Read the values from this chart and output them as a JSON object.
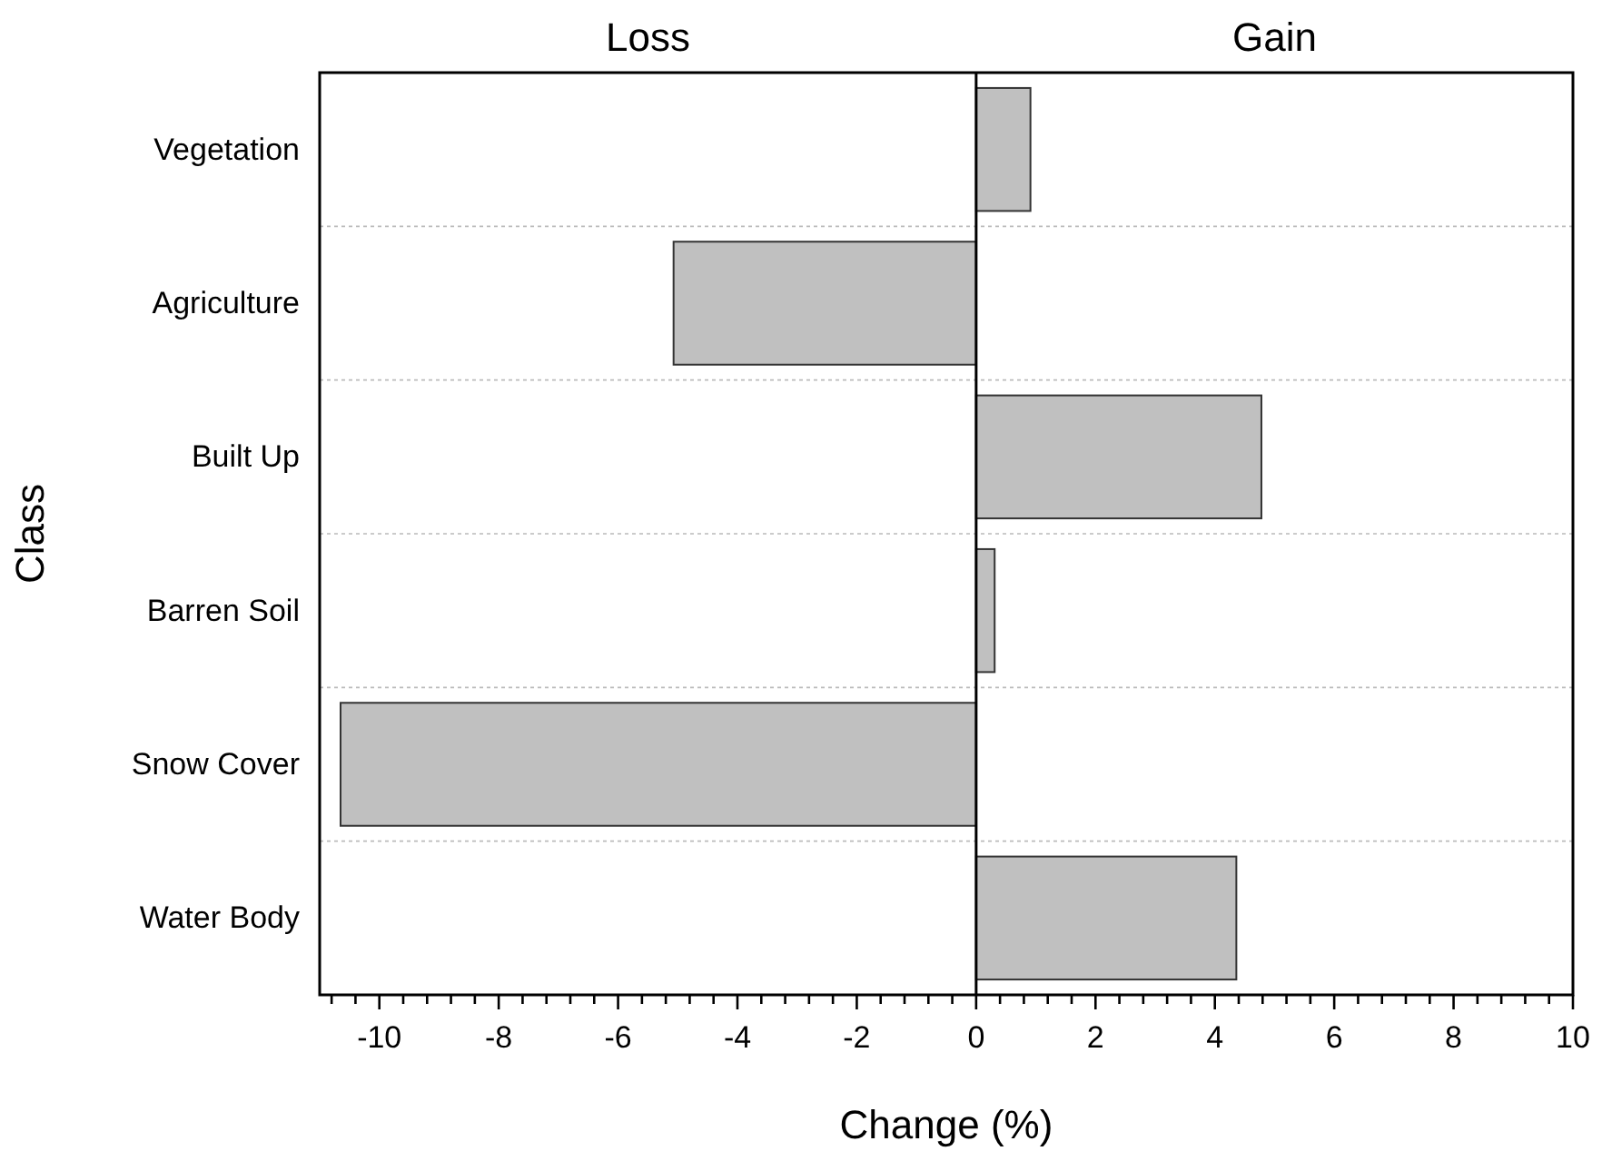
{
  "chart_data": {
    "type": "bar",
    "orientation": "horizontal",
    "xlabel": "Change (%)",
    "ylabel": "Class",
    "annotations": [
      "Loss",
      "Gain"
    ],
    "categories": [
      "Vegetation",
      "Agriculture",
      "Built Up",
      "Barren Soil",
      "Snow Cover",
      "Water Body"
    ],
    "values": [
      0.91,
      -5.07,
      4.78,
      0.31,
      -10.65,
      4.36
    ],
    "color": "#c0c0c0",
    "xlim": [
      -11,
      10
    ],
    "xticks": [
      {
        "value": -10.8,
        "label": null
      },
      {
        "value": -10.4,
        "label": null
      },
      -10,
      {
        "value": -9.6,
        "label": null
      },
      {
        "value": -9.2,
        "label": null
      },
      {
        "value": -8.8,
        "label": null
      },
      {
        "value": -8.4,
        "label": null
      },
      -8,
      {
        "value": -7.6,
        "label": null
      },
      {
        "value": -7.2,
        "label": null
      },
      {
        "value": -6.8,
        "label": null
      },
      {
        "value": -6.4,
        "label": null
      },
      -6,
      {
        "value": -5.6,
        "label": null
      },
      {
        "value": -5.2,
        "label": null
      },
      {
        "value": -4.8,
        "label": null
      },
      {
        "value": -4.4,
        "label": null
      },
      -4,
      {
        "value": -3.6,
        "label": null
      },
      {
        "value": -3.2,
        "label": null
      },
      {
        "value": -2.8,
        "label": null
      },
      {
        "value": -2.4,
        "label": null
      },
      -2,
      {
        "value": -1.6,
        "label": null
      },
      {
        "value": -1.2,
        "label": null
      },
      {
        "value": -0.8,
        "label": null
      },
      {
        "value": -0.4,
        "label": null
      },
      0,
      {
        "value": 0.4,
        "label": null
      },
      {
        "value": 0.8,
        "label": null
      },
      {
        "value": 1.2,
        "label": null
      },
      {
        "value": 1.6,
        "label": null
      },
      2,
      {
        "value": 2.4,
        "label": null
      },
      {
        "value": 2.8,
        "label": null
      },
      {
        "value": 3.2,
        "label": null
      },
      {
        "value": 3.6,
        "label": null
      },
      4,
      {
        "value": 4.4,
        "label": null
      },
      {
        "value": 4.8,
        "label": null
      },
      {
        "value": 5.2,
        "label": null
      },
      {
        "value": 5.6,
        "label": null
      },
      6,
      {
        "value": 6.4,
        "label": null
      },
      {
        "value": 6.8,
        "label": null
      },
      {
        "value": 7.2,
        "label": null
      },
      {
        "value": 7.6,
        "label": null
      },
      8,
      {
        "value": 8.4,
        "label": null
      },
      {
        "value": 8.8,
        "label": null
      },
      {
        "value": 9.2,
        "label": null
      },
      {
        "value": 9.6,
        "label": null
      },
      10
    ],
    "ref_lines": [
      {
        "axis": "x",
        "value": 0,
        "color": "#000000"
      }
    ],
    "grid": "y"
  }
}
